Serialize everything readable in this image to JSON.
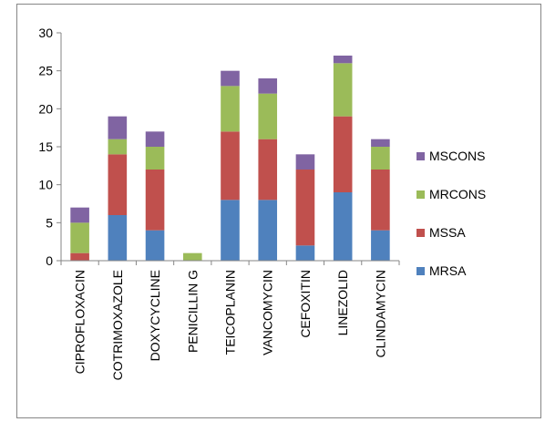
{
  "chart_data": {
    "type": "bar",
    "stacked": true,
    "categories": [
      "CIPROFLOXACIN",
      "COTRIMOXAZOLE",
      "DOXYCYCLINE",
      "PENICILLIN G",
      "TEICOPLANIN",
      "VANCOMYCIN",
      "CEFOXITIN",
      "LINEZOLID",
      "CLINDAMYCIN"
    ],
    "series": [
      {
        "name": "MRSA",
        "color": "#4f81bd",
        "values": [
          0,
          6,
          4,
          0,
          8,
          8,
          2,
          9,
          4
        ]
      },
      {
        "name": "MSSA",
        "color": "#c0504d",
        "values": [
          1,
          8,
          8,
          0,
          9,
          8,
          10,
          10,
          8
        ]
      },
      {
        "name": "MRCONS",
        "color": "#9bbb59",
        "values": [
          4,
          2,
          3,
          1,
          6,
          6,
          0,
          7,
          3
        ]
      },
      {
        "name": "MSCONS",
        "color": "#8064a2",
        "values": [
          2,
          3,
          2,
          0,
          2,
          2,
          2,
          1,
          1
        ]
      }
    ],
    "ylim": [
      0,
      30
    ],
    "yticks": [
      0,
      5,
      10,
      15,
      20,
      25,
      30
    ],
    "grid": false,
    "legend": "right"
  }
}
